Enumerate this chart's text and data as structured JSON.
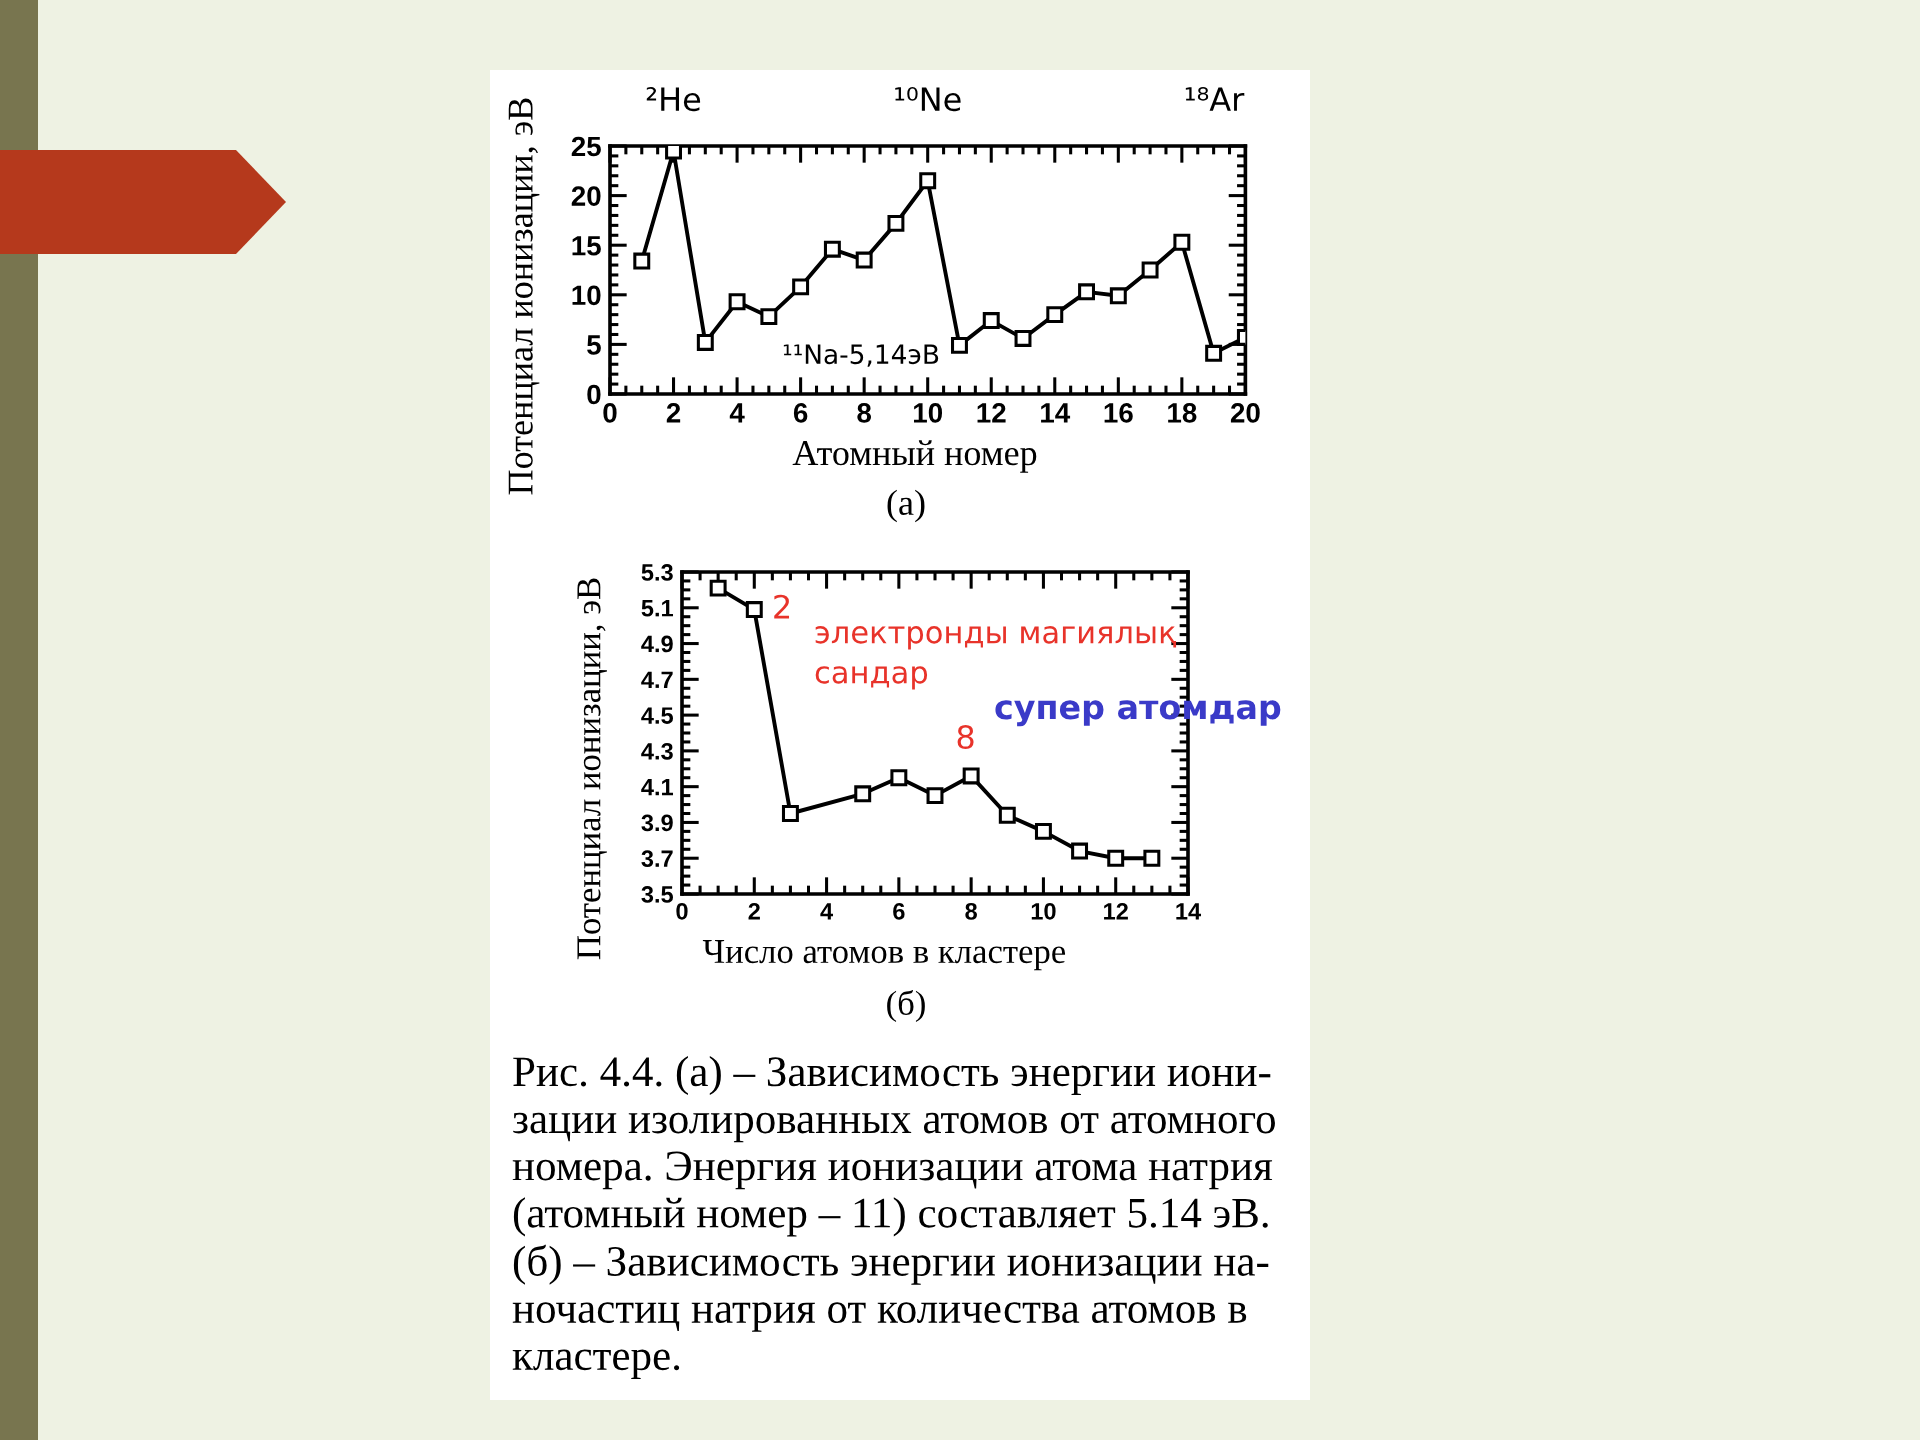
{
  "chart_data": [
    {
      "type": "line",
      "xlabel": "Атомный номер",
      "ylabel": "Потенциал ионизации, эВ",
      "x": [
        1,
        2,
        3,
        4,
        5,
        6,
        7,
        8,
        9,
        10,
        11,
        12,
        13,
        14,
        15,
        16,
        17,
        18,
        19,
        20
      ],
      "series": [
        {
          "color": "#000000",
          "values": [
            13.4,
            24.5,
            5.2,
            9.3,
            7.8,
            10.8,
            14.6,
            13.5,
            17.2,
            21.5,
            4.9,
            7.4,
            5.6,
            8.0,
            10.3,
            9.9,
            12.5,
            15.3,
            4.1,
            5.7
          ]
        }
      ],
      "xlim": [
        0,
        20
      ],
      "xticks": [
        0,
        2,
        4,
        6,
        8,
        10,
        12,
        14,
        16,
        18,
        20
      ],
      "ylim": [
        0,
        25
      ],
      "yticks": [
        0,
        5,
        10,
        15,
        20,
        25
      ],
      "marker": "square",
      "line_style": "solid",
      "annotations": [
        {
          "text": "²He",
          "x": 2,
          "y": 24.5
        },
        {
          "text": "¹⁰Ne",
          "x": 10,
          "y": 21.5
        },
        "¹⁸Ar",
        {
          "text": "¹¹Na-5,14эВ",
          "x": 11,
          "y": 4.9
        },
        "(а)"
      ]
    },
    {
      "type": "line",
      "xlabel": "Число атомов в кластере",
      "ylabel": "Потенциал ионизации, эВ",
      "x": [
        1,
        2,
        3,
        5,
        6,
        7,
        8,
        9,
        10,
        11,
        12,
        13
      ],
      "series": [
        {
          "color": "#000000",
          "values": [
            5.21,
            5.09,
            3.95,
            4.06,
            4.15,
            4.05,
            4.16,
            3.94,
            3.85,
            3.74,
            3.7,
            3.7
          ]
        }
      ],
      "xlim": [
        0,
        14
      ],
      "xticks": [
        0,
        2,
        4,
        6,
        8,
        10,
        12,
        14
      ],
      "ylim": [
        3.5,
        5.3
      ],
      "yticks": [
        3.5,
        3.7,
        3.9,
        4.1,
        4.3,
        4.5,
        4.7,
        4.9,
        5.1,
        5.3
      ],
      "marker": "square",
      "line_style": "solid",
      "annotations": [
        {
          "text": "2",
          "x": 2,
          "y": 5.09
        },
        {
          "text": "8",
          "x": 8,
          "y": 4.16
        },
        "электронды магиялық\nсандар",
        "супер атомдар",
        "(б)",
        "Рис. 4.4. (а) – Зависимость энергии иони-\nзации изолированных атомов от атомного\nномера. Энергия ионизации атома натрия\n(атомный номер – 11) составляет 5.14 эВ.\n(б) – Зависимость энергии ионизации на-\nночастиц натрия от количества атомов в\nкластере."
      ]
    }
  ]
}
